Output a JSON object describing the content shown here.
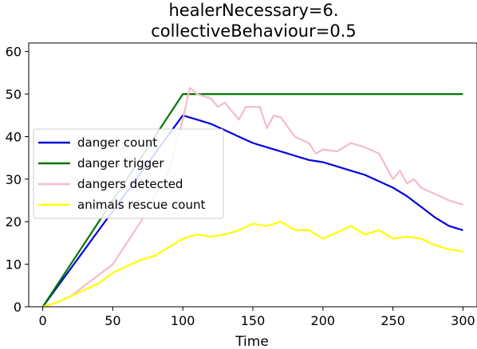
{
  "chart_data": {
    "type": "line",
    "title_line1": "healerNecessary=6.",
    "title_line2": "collectiveBehaviour=0.5",
    "xlabel": "Time",
    "ylabel": "",
    "xlim": [
      -10,
      310
    ],
    "ylim": [
      0,
      62
    ],
    "xticks": [
      0,
      50,
      100,
      150,
      200,
      250,
      300
    ],
    "yticks": [
      0,
      10,
      20,
      30,
      40,
      50,
      60
    ],
    "xtick_labels": [
      "0",
      "50",
      "100",
      "150",
      "200",
      "250",
      "300"
    ],
    "ytick_labels": [
      "0",
      "10",
      "20",
      "30",
      "40",
      "50",
      "60"
    ],
    "grid": false,
    "legend_position": "center-left",
    "series": [
      {
        "name": "danger count",
        "color": "#0000dd",
        "points": [
          [
            0,
            0
          ],
          [
            10,
            4.5
          ],
          [
            20,
            9
          ],
          [
            30,
            13.5
          ],
          [
            40,
            18
          ],
          [
            50,
            22.5
          ],
          [
            60,
            27
          ],
          [
            70,
            31.5
          ],
          [
            80,
            36
          ],
          [
            90,
            40.5
          ],
          [
            100,
            45
          ],
          [
            110,
            44
          ],
          [
            120,
            43
          ],
          [
            130,
            41.5
          ],
          [
            140,
            40
          ],
          [
            150,
            38.5
          ],
          [
            160,
            37.5
          ],
          [
            170,
            36.5
          ],
          [
            180,
            35.5
          ],
          [
            190,
            34.5
          ],
          [
            200,
            34
          ],
          [
            210,
            33
          ],
          [
            220,
            32
          ],
          [
            230,
            31
          ],
          [
            240,
            29.5
          ],
          [
            250,
            28
          ],
          [
            260,
            26
          ],
          [
            270,
            23.5
          ],
          [
            280,
            21
          ],
          [
            290,
            19
          ],
          [
            300,
            18
          ]
        ]
      },
      {
        "name": "danger trigger",
        "color": "#007700",
        "points": [
          [
            0,
            0
          ],
          [
            100,
            50
          ],
          [
            300,
            50
          ]
        ]
      },
      {
        "name": "dangers detected",
        "color": "#f4bcc8",
        "points": [
          [
            0,
            0
          ],
          [
            10,
            1
          ],
          [
            20,
            2.5
          ],
          [
            30,
            5
          ],
          [
            40,
            7.5
          ],
          [
            50,
            10
          ],
          [
            60,
            15
          ],
          [
            70,
            20
          ],
          [
            80,
            26
          ],
          [
            90,
            32
          ],
          [
            95,
            38
          ],
          [
            100,
            44
          ],
          [
            105,
            51.5
          ],
          [
            110,
            50
          ],
          [
            120,
            49
          ],
          [
            125,
            47
          ],
          [
            130,
            48
          ],
          [
            140,
            44
          ],
          [
            145,
            47
          ],
          [
            150,
            47
          ],
          [
            155,
            47
          ],
          [
            160,
            42
          ],
          [
            165,
            45
          ],
          [
            170,
            44.5
          ],
          [
            180,
            40
          ],
          [
            190,
            38.5
          ],
          [
            195,
            36
          ],
          [
            200,
            37
          ],
          [
            210,
            36.5
          ],
          [
            220,
            38.5
          ],
          [
            230,
            37.5
          ],
          [
            240,
            36
          ],
          [
            250,
            30
          ],
          [
            255,
            32
          ],
          [
            260,
            29
          ],
          [
            265,
            30
          ],
          [
            270,
            28
          ],
          [
            280,
            26.5
          ],
          [
            290,
            25
          ],
          [
            300,
            24
          ]
        ]
      },
      {
        "name": "animals rescue count",
        "color": "#ffff00",
        "points": [
          [
            0,
            0
          ],
          [
            10,
            1
          ],
          [
            20,
            2.5
          ],
          [
            30,
            4
          ],
          [
            40,
            5.5
          ],
          [
            50,
            8
          ],
          [
            60,
            9.5
          ],
          [
            70,
            11
          ],
          [
            80,
            12
          ],
          [
            90,
            14
          ],
          [
            100,
            16
          ],
          [
            110,
            17
          ],
          [
            120,
            16.5
          ],
          [
            130,
            17
          ],
          [
            140,
            18
          ],
          [
            150,
            19.5
          ],
          [
            160,
            19
          ],
          [
            170,
            20
          ],
          [
            180,
            18
          ],
          [
            190,
            18
          ],
          [
            200,
            16
          ],
          [
            210,
            17.5
          ],
          [
            220,
            19
          ],
          [
            230,
            17
          ],
          [
            240,
            18
          ],
          [
            250,
            16
          ],
          [
            260,
            16.5
          ],
          [
            270,
            16
          ],
          [
            280,
            14.5
          ],
          [
            290,
            13.5
          ],
          [
            300,
            13
          ]
        ]
      }
    ]
  }
}
